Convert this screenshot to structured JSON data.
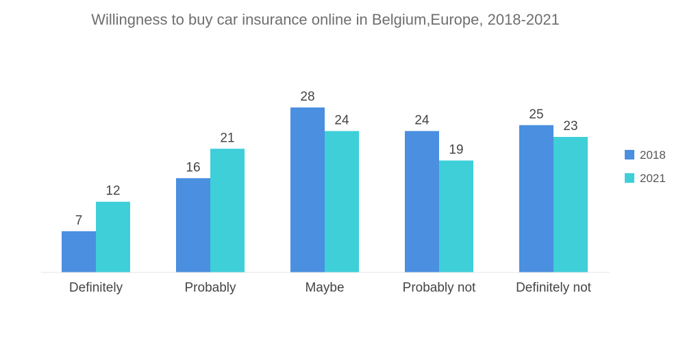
{
  "chart_data": {
    "type": "bar",
    "title": "Willingness to buy car insurance online in Belgium,Europe, 2018-2021",
    "categories": [
      "Definitely",
      "Probably",
      "Maybe",
      "Probably not",
      "Definitely not"
    ],
    "series": [
      {
        "name": "2018",
        "values": [
          7,
          16,
          28,
          24,
          25
        ],
        "color": "#4a8fe0"
      },
      {
        "name": "2021",
        "values": [
          12,
          21,
          24,
          19,
          23
        ],
        "color": "#3ecfd9"
      }
    ],
    "xlabel": "",
    "ylabel": "",
    "ylim": [
      0,
      28
    ],
    "grid": false,
    "legend": "right"
  }
}
